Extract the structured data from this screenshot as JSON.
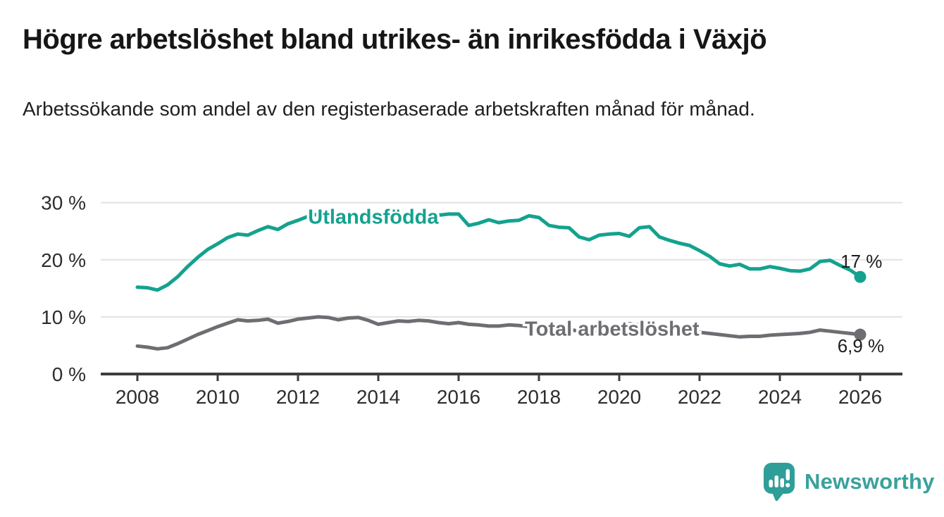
{
  "header": {
    "title": "Högre arbetslöshet bland utrikes- än inrikesfödda i Växjö",
    "subtitle": "Arbetssökande som andel av den registerbaserade arbetskraften månad för månad."
  },
  "branding": {
    "logo_text": "Newsworthy",
    "logo_color": "#3aa19c",
    "logo_icon": "speech-bubble-bar-chart"
  },
  "chart_data": {
    "type": "line",
    "grid": true,
    "legend_position": "inline-labels",
    "background_color": "#ffffff",
    "unit": "%",
    "ylim": [
      0,
      30
    ],
    "axis_color": "#3d3d3d",
    "gridline_color": "#e3e3e3",
    "tick_label_color": "#2d2d2d",
    "annotation_color": "#1d1d1d",
    "y_ticks": [
      {
        "value": 0,
        "label": "0 %"
      },
      {
        "value": 10,
        "label": "10 %"
      },
      {
        "value": 20,
        "label": "20 %"
      },
      {
        "value": 30,
        "label": "30 %"
      }
    ],
    "x_ticks": [
      {
        "value": 2008,
        "label": "2008"
      },
      {
        "value": 2010,
        "label": "2010"
      },
      {
        "value": 2012,
        "label": "2012"
      },
      {
        "value": 2014,
        "label": "2014"
      },
      {
        "value": 2016,
        "label": "2016"
      },
      {
        "value": 2018,
        "label": "2018"
      },
      {
        "value": 2020,
        "label": "2020"
      },
      {
        "value": 2022,
        "label": "2022"
      },
      {
        "value": 2024,
        "label": "2024"
      },
      {
        "value": 2026,
        "label": "2026"
      }
    ],
    "x_start": 2008,
    "x_step": 0.25,
    "series": [
      {
        "name": "Utlandsfödda",
        "color": "#14a28f",
        "values": [
          15.2,
          15.1,
          14.7,
          15.6,
          17.0,
          18.8,
          20.4,
          21.8,
          22.8,
          23.9,
          24.5,
          24.3,
          25.1,
          25.8,
          25.3,
          26.3,
          26.9,
          27.6,
          28.0,
          27.7,
          27.8,
          28.1,
          27.7,
          27.9,
          28.0,
          27.6,
          27.9,
          27.6,
          27.7,
          28.0,
          27.8,
          28.0,
          28.0,
          26.0,
          26.4,
          27.0,
          26.5,
          26.8,
          26.9,
          27.7,
          27.4,
          26.0,
          25.7,
          25.6,
          24.0,
          23.5,
          24.3,
          24.5,
          24.6,
          24.1,
          25.6,
          25.8,
          24.0,
          23.4,
          22.9,
          22.5,
          21.6,
          20.6,
          19.3,
          18.9,
          19.2,
          18.4,
          18.4,
          18.8,
          18.5,
          18.1,
          18.0,
          18.4,
          19.7,
          19.9,
          19.0,
          18.2,
          17.0
        ],
        "line_label": {
          "text": "Utlandsfödda",
          "year": 2012.25,
          "value": 26.3
        },
        "end_dot": true,
        "end_value_label": {
          "text": "17 %",
          "year": 2026.55,
          "value": 18.6,
          "anchor": "end"
        }
      },
      {
        "name": "Total arbetslöshet",
        "color": "#6e6d72",
        "values": [
          4.9,
          4.7,
          4.4,
          4.6,
          5.3,
          6.1,
          6.9,
          7.6,
          8.3,
          8.9,
          9.5,
          9.3,
          9.4,
          9.6,
          8.9,
          9.2,
          9.6,
          9.8,
          10.0,
          9.9,
          9.5,
          9.8,
          9.9,
          9.4,
          8.7,
          9.0,
          9.3,
          9.2,
          9.4,
          9.3,
          9.0,
          8.8,
          9.0,
          8.7,
          8.6,
          8.4,
          8.4,
          8.6,
          8.5,
          8.3,
          8.1,
          8.0,
          7.9,
          7.8,
          7.5,
          7.4,
          7.6,
          7.7,
          8.2,
          8.8,
          8.6,
          8.4,
          8.0,
          7.7,
          7.5,
          7.3,
          7.3,
          7.1,
          6.9,
          6.7,
          6.5,
          6.6,
          6.6,
          6.8,
          6.9,
          7.0,
          7.1,
          7.3,
          7.7,
          7.5,
          7.3,
          7.1,
          6.9
        ],
        "line_label": {
          "text": "Total arbetslöshet",
          "year": 2017.65,
          "value": 6.7
        },
        "end_dot": true,
        "end_value_label": {
          "text": "6,9 %",
          "year": 2026.6,
          "value": 3.8,
          "anchor": "end"
        }
      }
    ]
  }
}
